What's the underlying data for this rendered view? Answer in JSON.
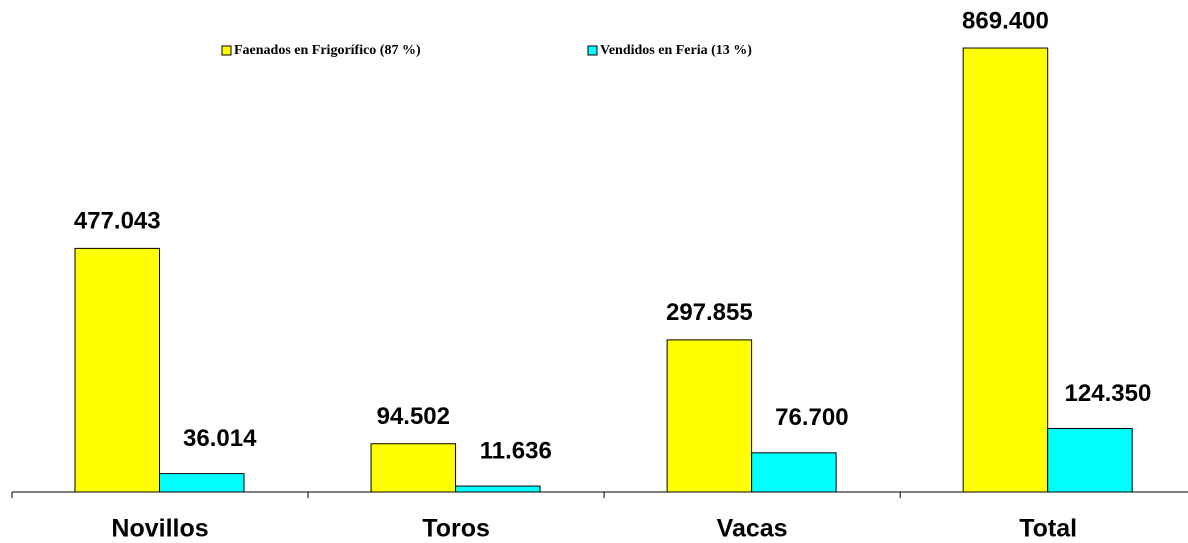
{
  "chart_data": {
    "type": "bar",
    "categories": [
      "Novillos",
      "Toros",
      "Vacas",
      "Total"
    ],
    "series": [
      {
        "name": "Faenados en Frigorífico (87 %)",
        "color": "#ffff00",
        "values": [
          477043,
          94502,
          297855,
          869400
        ],
        "value_labels": [
          "477.043",
          "94.502",
          "297.855",
          "869.400"
        ]
      },
      {
        "name": "Vendidos en Feria (13 %)",
        "color": "#00ffff",
        "values": [
          36014,
          11636,
          76700,
          124350
        ],
        "value_labels": [
          "36.014",
          "11.636",
          "76.700",
          "124.350"
        ]
      }
    ],
    "ylim": [
      0,
      900000
    ],
    "legend": "top"
  }
}
